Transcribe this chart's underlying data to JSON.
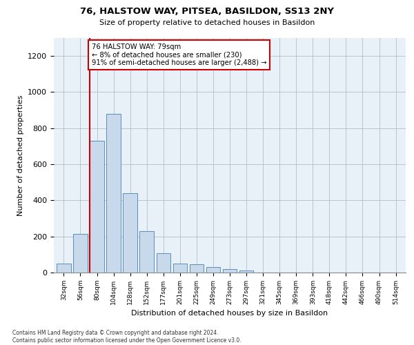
{
  "title": "76, HALSTOW WAY, PITSEA, BASILDON, SS13 2NY",
  "subtitle": "Size of property relative to detached houses in Basildon",
  "xlabel": "Distribution of detached houses by size in Basildon",
  "ylabel": "Number of detached properties",
  "bar_color": "#c9d9ec",
  "bar_edge_color": "#5b8db8",
  "background_color": "#ffffff",
  "ax_background_color": "#e8f0f8",
  "grid_color": "#b0bec8",
  "vline_color": "#cc0000",
  "vline_x_index": 2,
  "annotation_box_color": "#cc0000",
  "annotation_text": "76 HALSTOW WAY: 79sqm\n← 8% of detached houses are smaller (230)\n91% of semi-detached houses are larger (2,488) →",
  "categories": [
    "32sqm",
    "56sqm",
    "80sqm",
    "104sqm",
    "128sqm",
    "152sqm",
    "177sqm",
    "201sqm",
    "225sqm",
    "249sqm",
    "273sqm",
    "297sqm",
    "321sqm",
    "345sqm",
    "369sqm",
    "393sqm",
    "418sqm",
    "442sqm",
    "466sqm",
    "490sqm",
    "514sqm"
  ],
  "values": [
    50,
    215,
    730,
    880,
    440,
    230,
    108,
    48,
    45,
    30,
    20,
    10,
    0,
    0,
    0,
    0,
    0,
    0,
    0,
    0,
    0
  ],
  "ylim": [
    0,
    1300
  ],
  "yticks": [
    0,
    200,
    400,
    600,
    800,
    1000,
    1200
  ],
  "footer": "Contains HM Land Registry data © Crown copyright and database right 2024.\nContains public sector information licensed under the Open Government Licence v3.0.",
  "figsize": [
    6.0,
    5.0
  ],
  "dpi": 100
}
